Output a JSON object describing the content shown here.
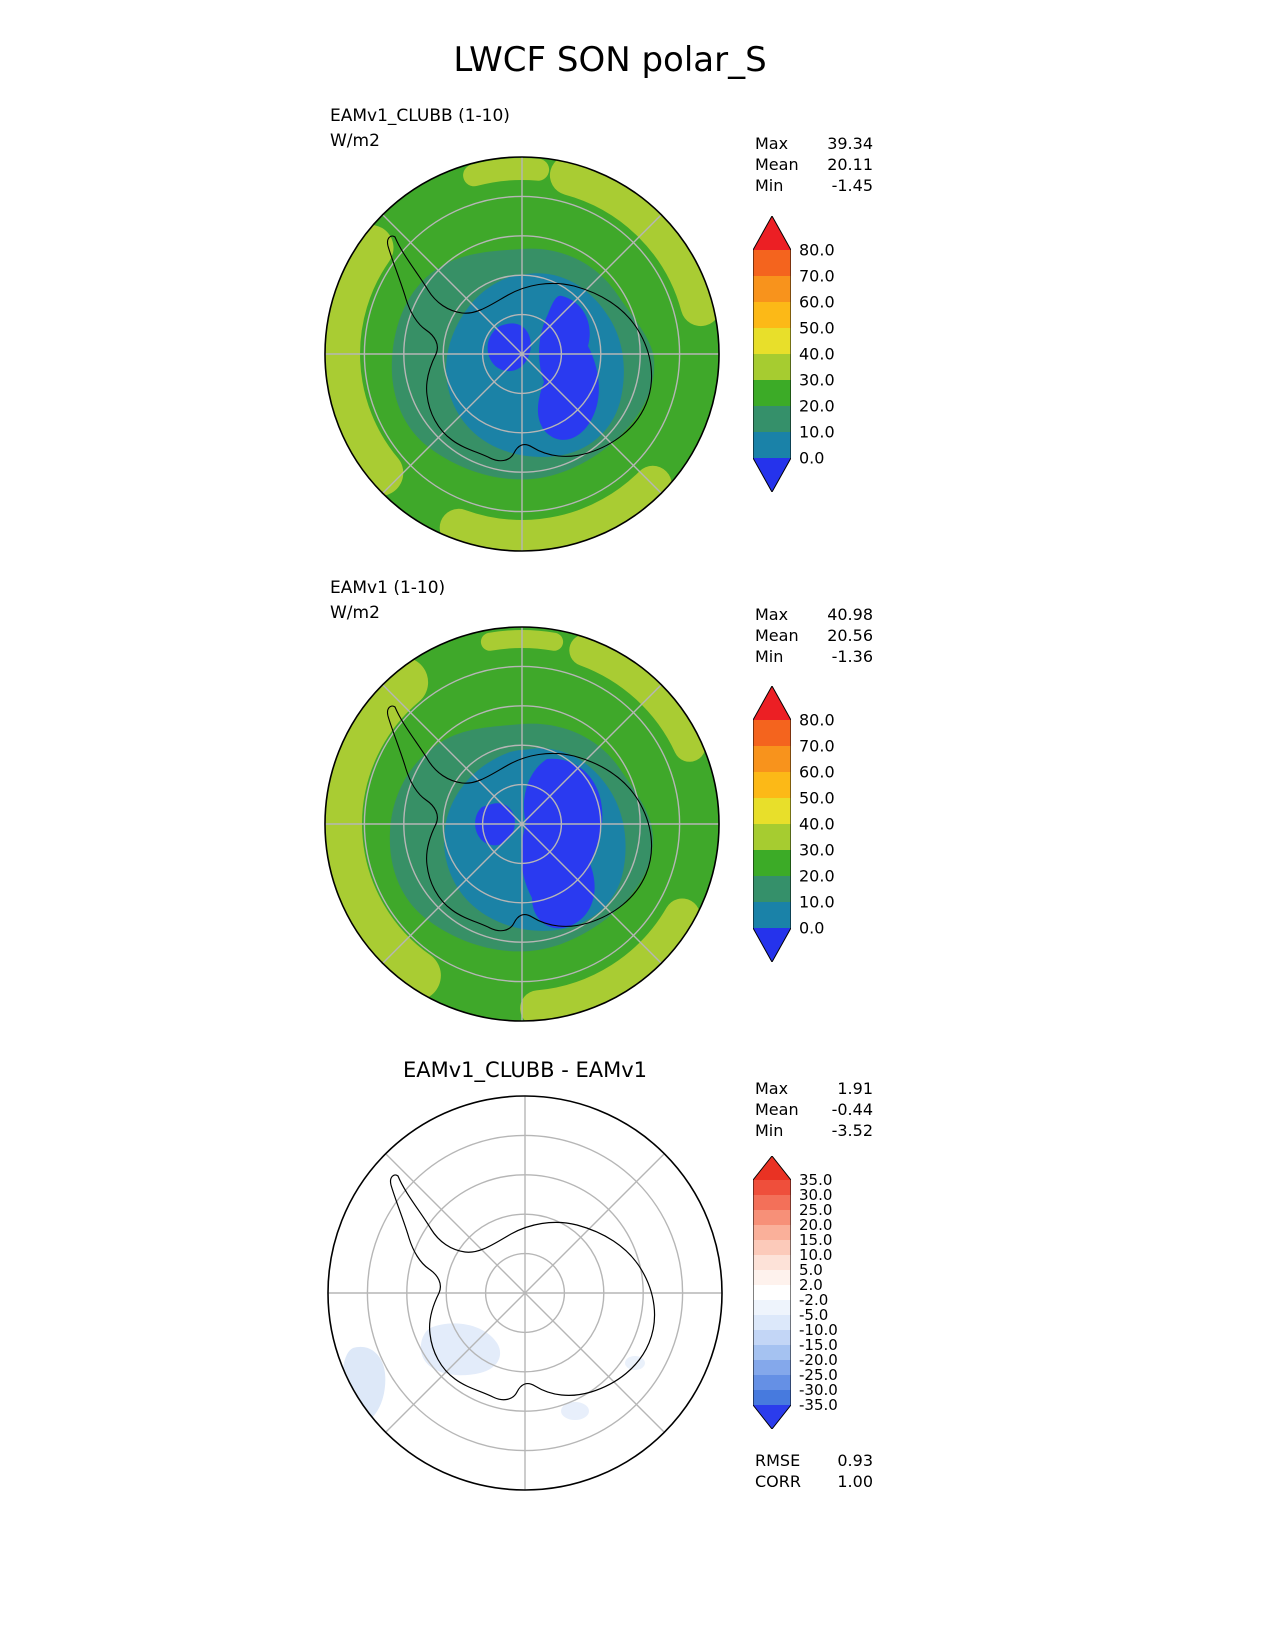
{
  "title": "LWCF SON polar_S",
  "panels": [
    {
      "label_line1": "EAMv1_CLUBB (1-10)",
      "label_line2": "W/m2",
      "stats": {
        "max_label": "Max",
        "max": "39.34",
        "mean_label": "Mean",
        "mean": "20.11",
        "min_label": "Min",
        "min": "-1.45"
      },
      "colorbar": {
        "levels": [
          "80.0",
          "70.0",
          "60.0",
          "50.0",
          "40.0",
          "30.0",
          "20.0",
          "10.0",
          "0.0"
        ],
        "colors": [
          "#ec1f24",
          "#f4641e",
          "#f8931c",
          "#fcb917",
          "#e8df2a",
          "#a6cc30",
          "#3cab27",
          "#35906a",
          "#1a82a8",
          "#2533ec"
        ]
      }
    },
    {
      "label_line1": "EAMv1 (1-10)",
      "label_line2": "W/m2",
      "stats": {
        "max_label": "Max",
        "max": "40.98",
        "mean_label": "Mean",
        "mean": "20.56",
        "min_label": "Min",
        "min": "-1.36"
      },
      "colorbar": {
        "levels": [
          "80.0",
          "70.0",
          "60.0",
          "50.0",
          "40.0",
          "30.0",
          "20.0",
          "10.0",
          "0.0"
        ],
        "colors": [
          "#ec1f24",
          "#f4641e",
          "#f8931c",
          "#fcb917",
          "#e8df2a",
          "#a6cc30",
          "#3cab27",
          "#35906a",
          "#1a82a8",
          "#2533ec"
        ]
      }
    },
    {
      "title": "EAMv1_CLUBB - EAMv1",
      "stats": {
        "max_label": "Max",
        "max": "1.91",
        "mean_label": "Mean",
        "mean": "-0.44",
        "min_label": "Min",
        "min": "-3.52"
      },
      "colorbar": {
        "levels": [
          "35.0",
          "30.0",
          "25.0",
          "20.0",
          "15.0",
          "10.0",
          "5.0",
          "2.0",
          "-2.0",
          "-5.0",
          "-10.0",
          "-15.0",
          "-20.0",
          "-25.0",
          "-30.0",
          "-35.0"
        ],
        "colors": [
          "#e93223",
          "#ef4f3b",
          "#f37059",
          "#f79078",
          "#fab09a",
          "#fccaba",
          "#fde2d8",
          "#fef2ed",
          "#ffffff",
          "#eef4fc",
          "#dce8fa",
          "#c3d6f6",
          "#a5c2f1",
          "#84a8eb",
          "#6590e5",
          "#477ade",
          "#2b3cec"
        ]
      },
      "metrics": {
        "rmse_label": "RMSE",
        "rmse": "0.93",
        "corr_label": "CORR",
        "corr": "1.00"
      }
    }
  ],
  "chart_data": {
    "type": "heatmap",
    "title": "LWCF SON polar_S",
    "units": "W/m2",
    "projection": "south polar stereographic",
    "maps": [
      {
        "name": "EAMv1_CLUBB (1-10)",
        "stats": {
          "max": 39.34,
          "mean": 20.11,
          "min": -1.45
        },
        "contour_levels": [
          0,
          10,
          20,
          30,
          40,
          50,
          60,
          70,
          80
        ]
      },
      {
        "name": "EAMv1 (1-10)",
        "stats": {
          "max": 40.98,
          "mean": 20.56,
          "min": -1.36
        },
        "contour_levels": [
          0,
          10,
          20,
          30,
          40,
          50,
          60,
          70,
          80
        ]
      },
      {
        "name": "EAMv1_CLUBB - EAMv1",
        "stats": {
          "max": 1.91,
          "mean": -0.44,
          "min": -3.52,
          "rmse": 0.93,
          "corr": 1.0
        },
        "contour_levels": [
          -35,
          -30,
          -25,
          -20,
          -15,
          -10,
          -5,
          -2,
          2,
          5,
          10,
          15,
          20,
          25,
          30,
          35
        ]
      }
    ]
  }
}
